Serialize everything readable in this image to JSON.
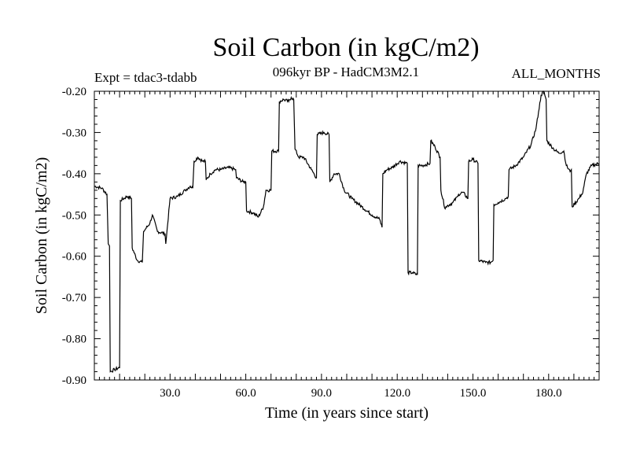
{
  "chart_data": {
    "type": "line",
    "title": "Soil Carbon (in kgC/m2)",
    "subtitle": "096kyr BP - HadCM3M2.1",
    "experiment": "Expt = tdac3-tdabb",
    "period": "ALL_MONTHS",
    "xlabel": "Time (in years since start)",
    "ylabel": "Soil Carbon (in kgC/m2)",
    "xlim": [
      0,
      200
    ],
    "ylim": [
      -0.9,
      -0.2
    ],
    "xticks": [
      30,
      60,
      90,
      120,
      150,
      180
    ],
    "xtick_labels": [
      "30.0",
      "60.0",
      "90.0",
      "120.0",
      "150.0",
      "180.0"
    ],
    "yticks": [
      -0.2,
      -0.3,
      -0.4,
      -0.5,
      -0.6,
      -0.7,
      -0.8,
      -0.9
    ],
    "ytick_labels": [
      "-0.20",
      "-0.30",
      "-0.40",
      "-0.50",
      "-0.60",
      "-0.70",
      "-0.80",
      "-0.90"
    ],
    "series": [
      {
        "name": "Soil Carbon",
        "color": "#000000",
        "x": [
          0,
          3,
          5,
          5.5,
          6,
          6.3,
          8,
          10,
          10.3,
          13,
          14.7,
          15,
          17,
          19,
          19.5,
          22,
          23,
          25,
          28,
          28.3,
          30,
          33,
          36,
          38,
          39,
          39.5,
          41,
          43,
          44,
          44.3,
          46,
          48,
          50,
          53,
          56,
          56.3,
          59,
          60,
          60.3,
          63,
          65,
          67,
          68,
          70,
          70.3,
          73,
          73.3,
          75,
          77,
          78,
          79,
          79.5,
          81,
          83,
          86,
          88,
          88.3,
          91,
          93,
          93.3,
          95,
          97,
          99,
          102,
          106,
          110,
          113,
          114,
          114.3,
          116,
          118,
          121,
          124,
          124.3,
          126,
          128,
          128.3,
          130,
          133,
          133.3,
          135,
          137,
          137.3,
          139,
          139.3,
          142,
          144,
          144.3,
          146,
          148,
          148.3,
          150,
          152,
          152.3,
          155,
          157,
          158,
          158.3,
          160,
          163,
          164,
          164.3,
          167,
          170,
          173,
          175,
          176,
          177,
          178,
          179,
          179.3,
          182,
          184,
          186,
          187,
          188.5,
          189,
          189.3,
          192,
          193,
          193.3,
          195,
          197,
          200
        ],
        "values": [
          -0.43,
          -0.435,
          -0.45,
          -0.57,
          -0.575,
          -0.88,
          -0.875,
          -0.87,
          -0.465,
          -0.455,
          -0.46,
          -0.58,
          -0.61,
          -0.615,
          -0.54,
          -0.52,
          -0.5,
          -0.54,
          -0.545,
          -0.57,
          -0.46,
          -0.455,
          -0.44,
          -0.43,
          -0.435,
          -0.37,
          -0.36,
          -0.37,
          -0.37,
          -0.415,
          -0.4,
          -0.39,
          -0.39,
          -0.385,
          -0.39,
          -0.41,
          -0.42,
          -0.42,
          -0.49,
          -0.495,
          -0.505,
          -0.48,
          -0.44,
          -0.44,
          -0.345,
          -0.345,
          -0.225,
          -0.22,
          -0.225,
          -0.215,
          -0.22,
          -0.34,
          -0.36,
          -0.36,
          -0.39,
          -0.41,
          -0.305,
          -0.3,
          -0.305,
          -0.42,
          -0.4,
          -0.4,
          -0.44,
          -0.46,
          -0.48,
          -0.5,
          -0.51,
          -0.53,
          -0.4,
          -0.39,
          -0.385,
          -0.37,
          -0.375,
          -0.64,
          -0.64,
          -0.645,
          -0.38,
          -0.38,
          -0.375,
          -0.32,
          -0.335,
          -0.36,
          -0.44,
          -0.485,
          -0.48,
          -0.47,
          -0.455,
          -0.45,
          -0.445,
          -0.46,
          -0.37,
          -0.365,
          -0.375,
          -0.61,
          -0.615,
          -0.615,
          -0.61,
          -0.475,
          -0.47,
          -0.46,
          -0.455,
          -0.39,
          -0.38,
          -0.36,
          -0.33,
          -0.29,
          -0.25,
          -0.21,
          -0.2,
          -0.22,
          -0.32,
          -0.34,
          -0.35,
          -0.345,
          -0.38,
          -0.395,
          -0.39,
          -0.48,
          -0.46,
          -0.45,
          -0.45,
          -0.4,
          -0.38,
          -0.375
        ]
      }
    ]
  }
}
